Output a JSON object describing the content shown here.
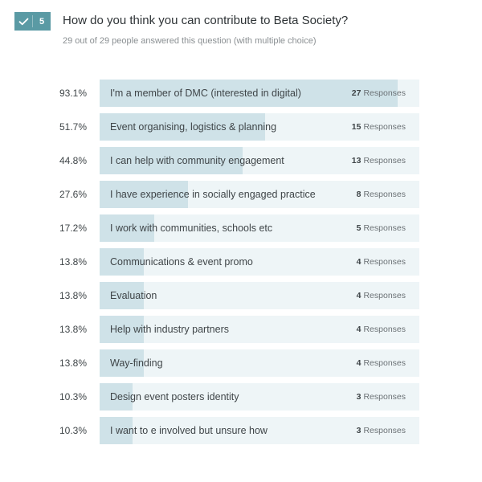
{
  "question": {
    "number": "5",
    "title": "How do you think you can contribute to Beta Society?",
    "subtitle": "29 out of 29 people answered this question (with multiple choice)",
    "badge_icon": "check-icon",
    "badge_color": "#5a9aa4"
  },
  "responses_word": "Responses",
  "colors": {
    "fill": "#cfe2e8",
    "track": "#eef5f7"
  },
  "answers": [
    {
      "percent": "93.1%",
      "fraction": 0.931,
      "label": "I'm a member of DMC (interested in digital)",
      "count": "27"
    },
    {
      "percent": "51.7%",
      "fraction": 0.517,
      "label": "Event organising, logistics & planning",
      "count": "15"
    },
    {
      "percent": "44.8%",
      "fraction": 0.448,
      "label": "I can help with community engagement",
      "count": "13"
    },
    {
      "percent": "27.6%",
      "fraction": 0.276,
      "label": "I have experience in socially engaged practice",
      "count": "8"
    },
    {
      "percent": "17.2%",
      "fraction": 0.172,
      "label": "I work with communities, schools etc",
      "count": "5"
    },
    {
      "percent": "13.8%",
      "fraction": 0.138,
      "label": "Communications & event promo",
      "count": "4"
    },
    {
      "percent": "13.8%",
      "fraction": 0.138,
      "label": "Evaluation",
      "count": "4"
    },
    {
      "percent": "13.8%",
      "fraction": 0.138,
      "label": "Help with industry partners",
      "count": "4"
    },
    {
      "percent": "13.8%",
      "fraction": 0.138,
      "label": "Way-finding",
      "count": "4"
    },
    {
      "percent": "10.3%",
      "fraction": 0.103,
      "label": "Design event posters identity",
      "count": "3"
    },
    {
      "percent": "10.3%",
      "fraction": 0.103,
      "label": "I want to e involved but unsure how",
      "count": "3"
    }
  ]
}
